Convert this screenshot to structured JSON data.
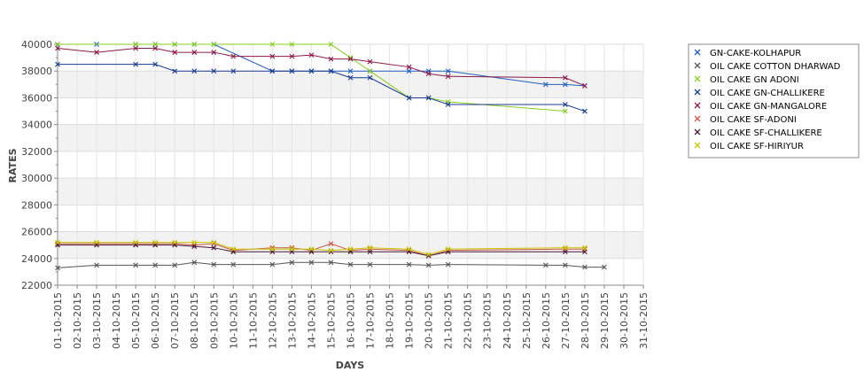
{
  "chart_data": {
    "type": "line",
    "title": "",
    "xlabel": "DAYS",
    "ylabel": "RATES",
    "ylim": [
      22000,
      40000
    ],
    "yticks": [
      22000,
      24000,
      26000,
      28000,
      30000,
      32000,
      34000,
      36000,
      38000,
      40000
    ],
    "ytick_labels": [
      "22000",
      "24000",
      "26000",
      "28000",
      "30000",
      "32000",
      "34000",
      "36000",
      "38000",
      "40000"
    ],
    "categories": [
      "01-10-2015",
      "02-10-2015",
      "03-10-2015",
      "04-10-2015",
      "05-10-2015",
      "06-10-2015",
      "07-10-2015",
      "08-10-2015",
      "09-10-2015",
      "10-10-2015",
      "11-10-2015",
      "12-10-2015",
      "13-10-2015",
      "14-10-2015",
      "15-10-2015",
      "16-10-2015",
      "17-10-2015",
      "18-10-2015",
      "19-10-2015",
      "20-10-2015",
      "21-10-2015",
      "22-10-2015",
      "23-10-2015",
      "24-10-2015",
      "25-10-2015",
      "26-10-2015",
      "27-10-2015",
      "28-10-2015",
      "29-10-2015",
      "30-10-2015",
      "31-10-2015"
    ],
    "grid": true,
    "banded_background": true,
    "legend_position": "right",
    "series": [
      {
        "name": "GN-CAKE-KOLHAPUR",
        "color": "#1f5fbf",
        "points": [
          [
            1,
            40000
          ],
          [
            3,
            40000
          ],
          [
            5,
            40000
          ],
          [
            6,
            40000
          ],
          [
            7,
            40000
          ],
          [
            8,
            40000
          ],
          [
            9,
            40000
          ],
          [
            12,
            38000
          ],
          [
            13,
            38000
          ],
          [
            14,
            38000
          ],
          [
            15,
            38000
          ],
          [
            16,
            38000
          ],
          [
            17,
            38000
          ],
          [
            19,
            38000
          ],
          [
            20,
            38000
          ],
          [
            21,
            38000
          ],
          [
            26,
            37000
          ],
          [
            27,
            37000
          ],
          [
            28,
            36900
          ]
        ]
      },
      {
        "name": "OIL CAKE COTTON DHARWAD",
        "color": "#555555",
        "points": [
          [
            1,
            23300
          ],
          [
            3,
            23500
          ],
          [
            5,
            23500
          ],
          [
            6,
            23500
          ],
          [
            7,
            23500
          ],
          [
            8,
            23700
          ],
          [
            9,
            23550
          ],
          [
            10,
            23550
          ],
          [
            12,
            23550
          ],
          [
            13,
            23700
          ],
          [
            14,
            23700
          ],
          [
            15,
            23700
          ],
          [
            16,
            23550
          ],
          [
            17,
            23550
          ],
          [
            19,
            23550
          ],
          [
            20,
            23500
          ],
          [
            21,
            23550
          ],
          [
            26,
            23500
          ],
          [
            27,
            23500
          ],
          [
            28,
            23350
          ],
          [
            29,
            23350
          ]
        ]
      },
      {
        "name": "OIL CAKE GN ADONI",
        "color": "#88cc22",
        "points": [
          [
            1,
            40000
          ],
          [
            5,
            40000
          ],
          [
            6,
            40000
          ],
          [
            7,
            40000
          ],
          [
            8,
            40000
          ],
          [
            9,
            40000
          ],
          [
            12,
            40000
          ],
          [
            13,
            40000
          ],
          [
            15,
            40000
          ],
          [
            16,
            39000
          ],
          [
            17,
            38000
          ],
          [
            19,
            36000
          ],
          [
            20,
            36000
          ],
          [
            21,
            35700
          ],
          [
            27,
            35000
          ]
        ]
      },
      {
        "name": "OIL CAKE GN-CHALLIKERE",
        "color": "#1a3a8f",
        "points": [
          [
            1,
            38500
          ],
          [
            5,
            38500
          ],
          [
            6,
            38500
          ],
          [
            7,
            38000
          ],
          [
            8,
            38000
          ],
          [
            9,
            38000
          ],
          [
            10,
            38000
          ],
          [
            12,
            38000
          ],
          [
            13,
            38000
          ],
          [
            14,
            38000
          ],
          [
            15,
            38000
          ],
          [
            16,
            37500
          ],
          [
            17,
            37500
          ],
          [
            19,
            36000
          ],
          [
            20,
            36000
          ],
          [
            21,
            35500
          ],
          [
            27,
            35500
          ],
          [
            28,
            35000
          ]
        ]
      },
      {
        "name": "OIL CAKE GN-MANGALORE",
        "color": "#8b1a4a",
        "points": [
          [
            1,
            39700
          ],
          [
            3,
            39400
          ],
          [
            5,
            39700
          ],
          [
            6,
            39700
          ],
          [
            7,
            39400
          ],
          [
            8,
            39400
          ],
          [
            9,
            39400
          ],
          [
            10,
            39100
          ],
          [
            12,
            39100
          ],
          [
            13,
            39100
          ],
          [
            14,
            39200
          ],
          [
            15,
            38900
          ],
          [
            16,
            38900
          ],
          [
            17,
            38700
          ],
          [
            19,
            38300
          ],
          [
            20,
            37800
          ],
          [
            21,
            37600
          ],
          [
            27,
            37500
          ],
          [
            28,
            36900
          ]
        ]
      },
      {
        "name": "OIL CAKE SF-ADONI",
        "color": "#cc5544",
        "points": [
          [
            1,
            25100
          ],
          [
            3,
            25100
          ],
          [
            5,
            25100
          ],
          [
            6,
            25100
          ],
          [
            7,
            25100
          ],
          [
            8,
            25000
          ],
          [
            9,
            25100
          ],
          [
            10,
            24600
          ],
          [
            12,
            24800
          ],
          [
            13,
            24800
          ],
          [
            14,
            24600
          ],
          [
            15,
            25100
          ],
          [
            16,
            24600
          ],
          [
            17,
            24700
          ],
          [
            19,
            24600
          ],
          [
            20,
            24200
          ],
          [
            21,
            24600
          ],
          [
            27,
            24700
          ],
          [
            28,
            24700
          ]
        ]
      },
      {
        "name": "OIL CAKE SF-CHALLIKERE",
        "color": "#4a1a3a",
        "points": [
          [
            1,
            25000
          ],
          [
            3,
            25000
          ],
          [
            5,
            25000
          ],
          [
            6,
            25000
          ],
          [
            7,
            25000
          ],
          [
            8,
            24900
          ],
          [
            9,
            24800
          ],
          [
            10,
            24500
          ],
          [
            12,
            24500
          ],
          [
            13,
            24500
          ],
          [
            14,
            24500
          ],
          [
            15,
            24500
          ],
          [
            16,
            24500
          ],
          [
            17,
            24500
          ],
          [
            19,
            24500
          ],
          [
            20,
            24200
          ],
          [
            21,
            24500
          ],
          [
            27,
            24500
          ],
          [
            28,
            24500
          ]
        ]
      },
      {
        "name": "OIL CAKE SF-HIRIYUR",
        "color": "#c8c800",
        "points": [
          [
            1,
            25200
          ],
          [
            3,
            25200
          ],
          [
            5,
            25200
          ],
          [
            6,
            25200
          ],
          [
            7,
            25200
          ],
          [
            8,
            25200
          ],
          [
            9,
            25200
          ],
          [
            10,
            24700
          ],
          [
            12,
            24700
          ],
          [
            13,
            24700
          ],
          [
            14,
            24700
          ],
          [
            15,
            24600
          ],
          [
            16,
            24700
          ],
          [
            17,
            24800
          ],
          [
            19,
            24700
          ],
          [
            20,
            24300
          ],
          [
            21,
            24700
          ],
          [
            27,
            24800
          ],
          [
            28,
            24800
          ]
        ]
      }
    ]
  }
}
